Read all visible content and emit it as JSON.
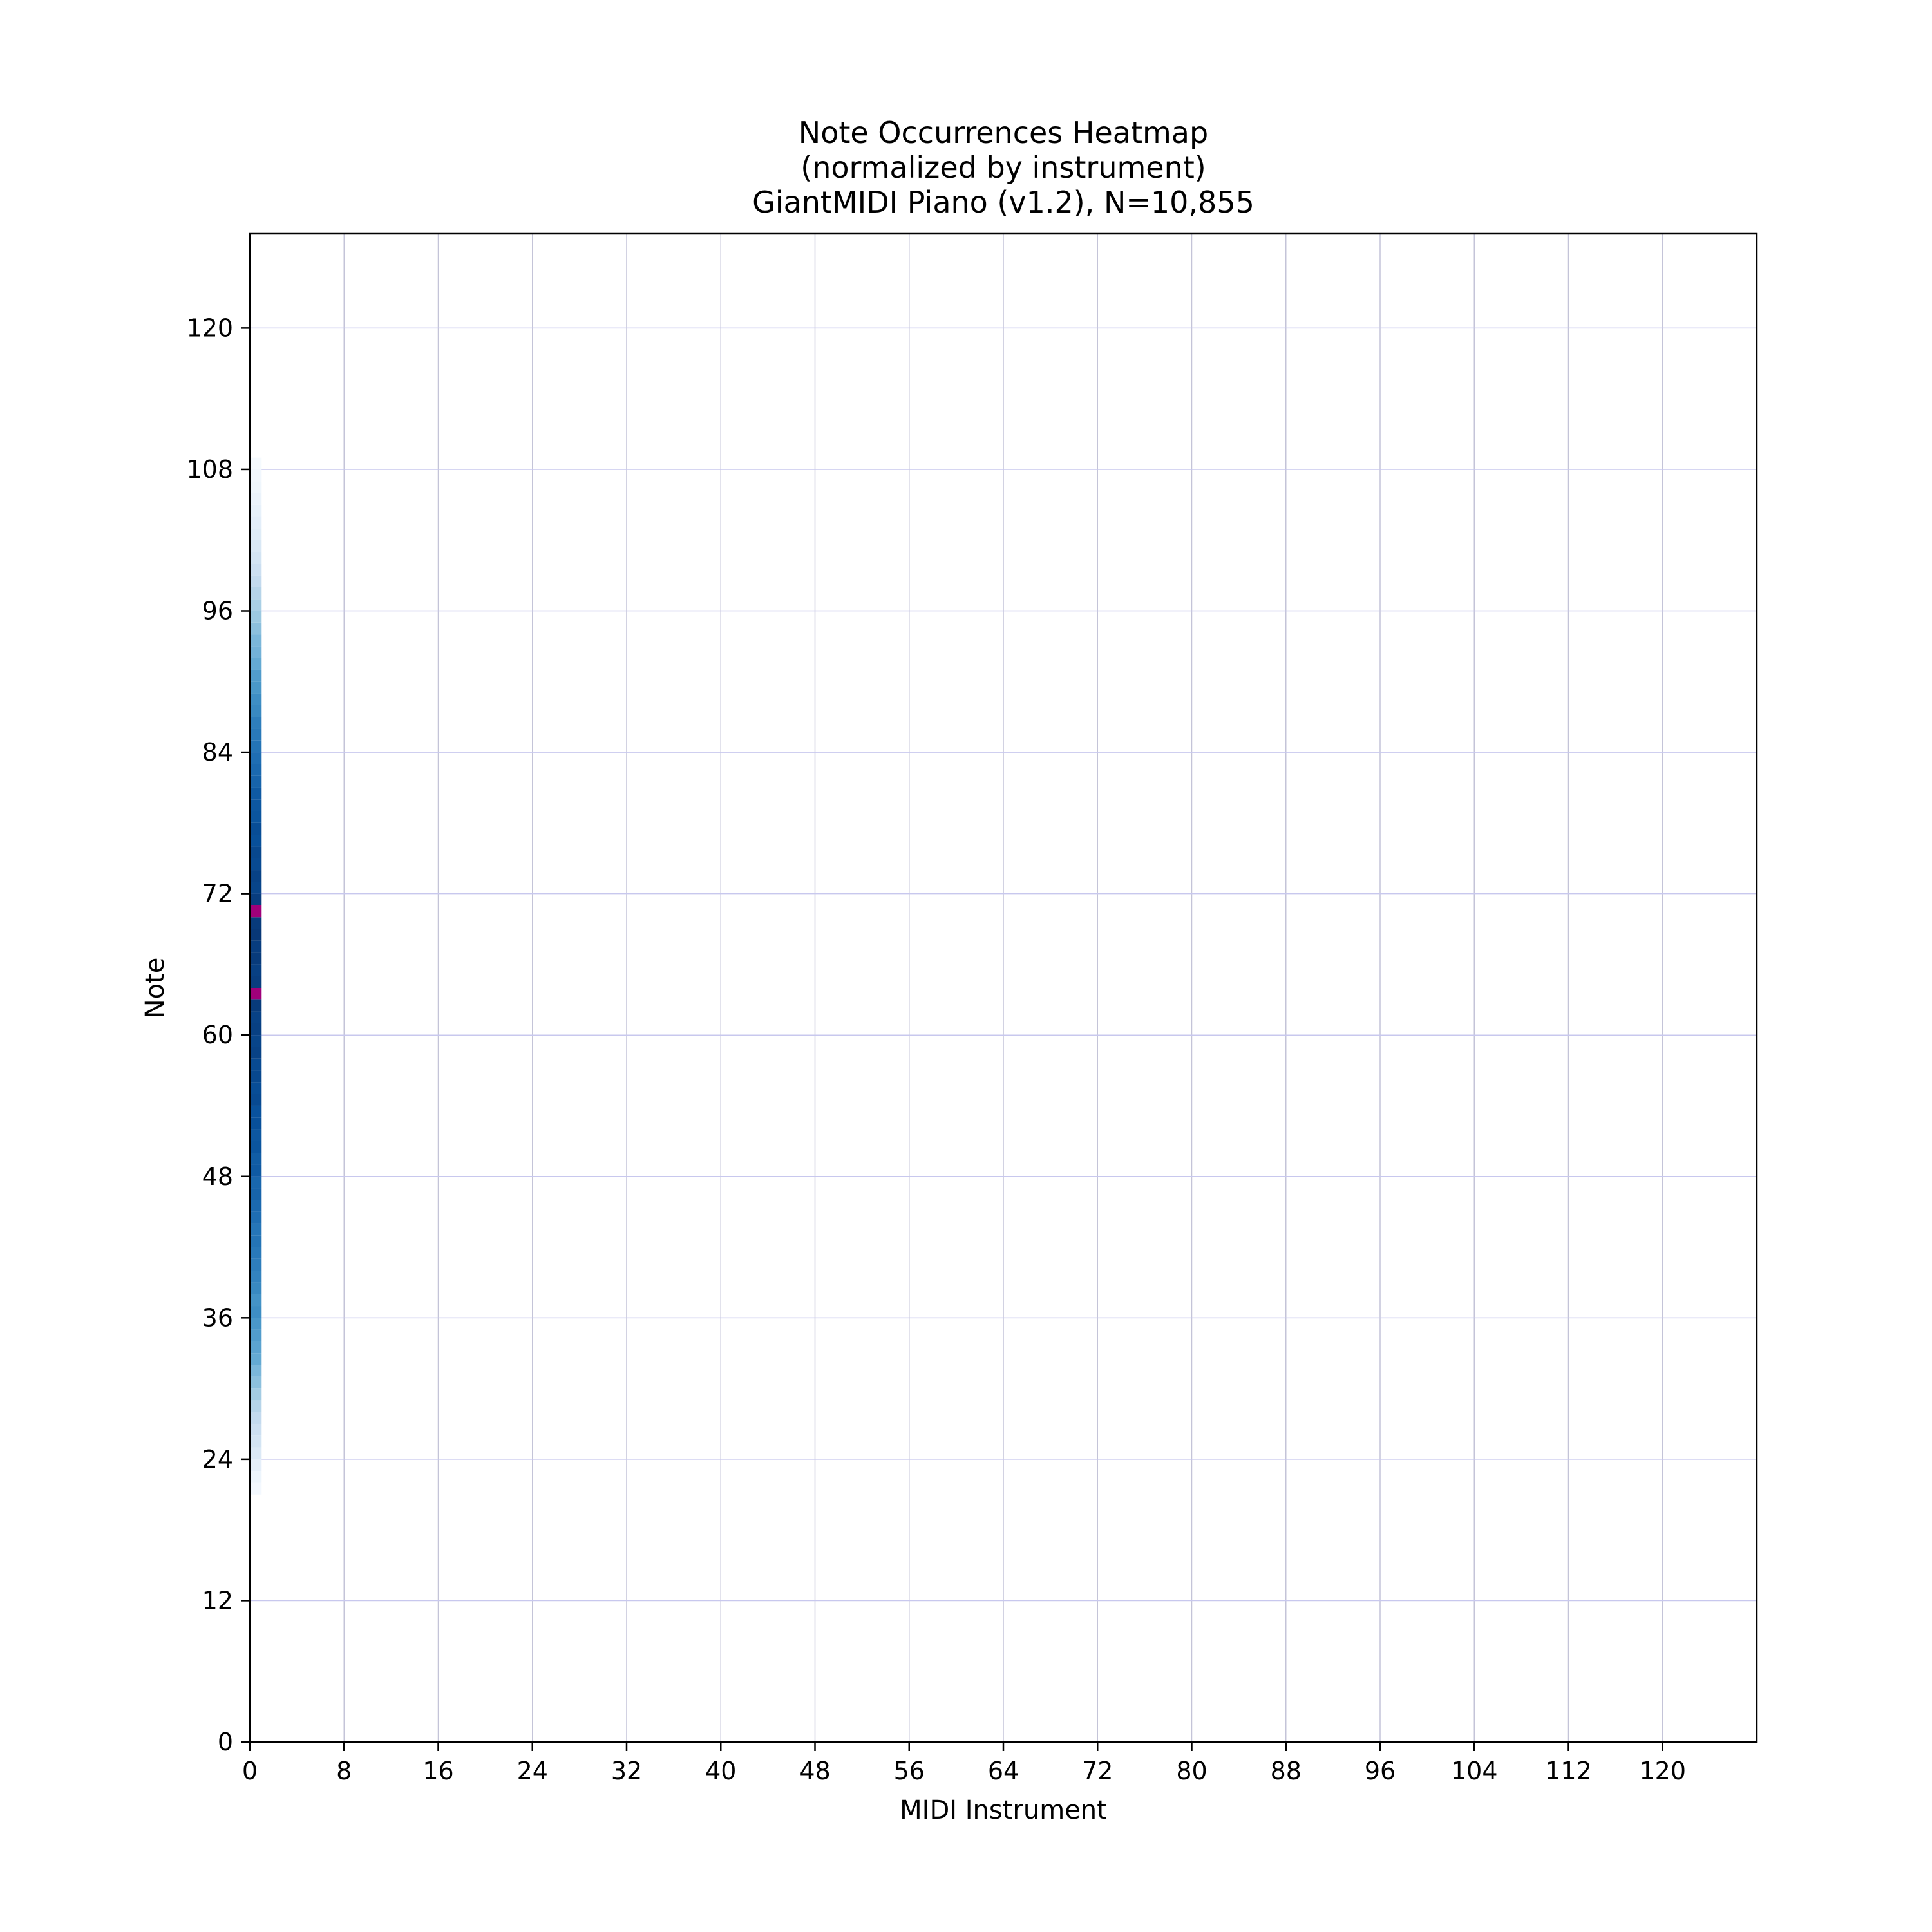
{
  "chart_data": {
    "type": "heatmap",
    "title_lines": [
      "Note Occurrences Heatmap",
      "(normalized by instrument)",
      "GiantMIDI Piano (v1.2), N=10,855"
    ],
    "xlabel": "MIDI Instrument",
    "ylabel": "Note",
    "xlim": [
      0,
      128
    ],
    "ylim": [
      0,
      128
    ],
    "x_ticks": [
      0,
      8,
      16,
      24,
      32,
      40,
      48,
      56,
      64,
      72,
      80,
      88,
      96,
      104,
      112,
      120
    ],
    "y_ticks": [
      0,
      12,
      24,
      36,
      48,
      60,
      72,
      84,
      96,
      108,
      120
    ],
    "grid": true,
    "colors": {
      "grid_x": "#c4c4d8",
      "grid_y": "#c8c8ee",
      "peak": "#a0007a",
      "colormap": [
        "#f7fbff",
        "#deebf7",
        "#c6dbef",
        "#9ecae1",
        "#6baed6",
        "#4292c6",
        "#2171b5",
        "#08519c",
        "#08306b"
      ]
    },
    "cells": {
      "instrument": 0,
      "notes": [
        21,
        22,
        23,
        24,
        25,
        26,
        27,
        28,
        29,
        30,
        31,
        32,
        33,
        34,
        35,
        36,
        37,
        38,
        39,
        40,
        41,
        42,
        43,
        44,
        45,
        46,
        47,
        48,
        49,
        50,
        51,
        52,
        53,
        54,
        55,
        56,
        57,
        58,
        59,
        60,
        61,
        62,
        63,
        64,
        65,
        66,
        67,
        68,
        69,
        70,
        71,
        72,
        73,
        74,
        75,
        76,
        77,
        78,
        79,
        80,
        81,
        82,
        83,
        84,
        85,
        86,
        87,
        88,
        89,
        90,
        91,
        92,
        93,
        94,
        95,
        96,
        97,
        98,
        99,
        100,
        101,
        102,
        103,
        104,
        105,
        106,
        107,
        108
      ],
      "values": [
        0.02,
        0.05,
        0.09,
        0.14,
        0.18,
        0.22,
        0.26,
        0.3,
        0.36,
        0.42,
        0.46,
        0.52,
        0.55,
        0.58,
        0.6,
        0.64,
        0.62,
        0.66,
        0.68,
        0.7,
        0.72,
        0.74,
        0.73,
        0.76,
        0.78,
        0.8,
        0.79,
        0.84,
        0.83,
        0.86,
        0.85,
        0.88,
        0.87,
        0.9,
        0.89,
        0.91,
        0.9,
        0.93,
        0.92,
        0.94,
        0.93,
        0.96,
        1.0,
        0.95,
        0.94,
        0.96,
        0.95,
        0.97,
        0.96,
        1.0,
        0.95,
        0.92,
        0.93,
        0.9,
        0.91,
        0.88,
        0.89,
        0.86,
        0.85,
        0.84,
        0.8,
        0.78,
        0.76,
        0.74,
        0.72,
        0.7,
        0.66,
        0.64,
        0.6,
        0.58,
        0.52,
        0.48,
        0.46,
        0.42,
        0.38,
        0.34,
        0.3,
        0.26,
        0.22,
        0.18,
        0.15,
        0.12,
        0.1,
        0.08,
        0.06,
        0.04,
        0.03,
        0.01
      ]
    }
  }
}
